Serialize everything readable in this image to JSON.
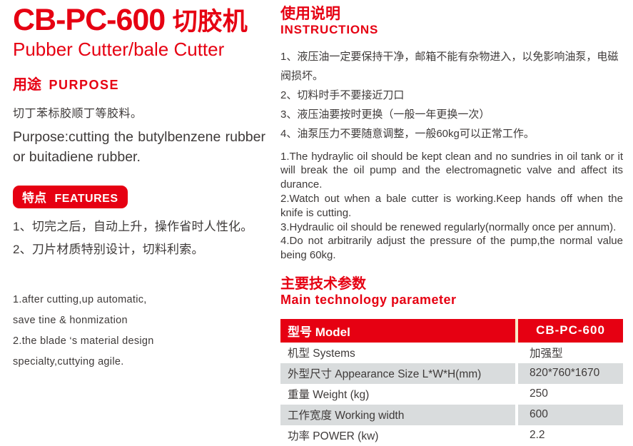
{
  "colors": {
    "accent_red": "#e60012",
    "text_dark": "#3e3a39",
    "row_gray": "#d9dcdd",
    "header_divider_cream": "#f7edc9"
  },
  "product": {
    "model": "CB-PC-600",
    "name_cn": "切胶机",
    "subtitle_en": "Pubber Cutter/bale Cutter"
  },
  "purpose": {
    "heading_cn": "用途",
    "heading_en": "PURPOSE",
    "text_cn": "切丁苯标胶顺丁等胶料。",
    "text_en": "Purpose:cutting the butylbenzene rubber or buitadiene rubber."
  },
  "features": {
    "badge_cn": "特点",
    "badge_en": "FEATURES",
    "items_cn": [
      "1、切完之后，自动上升，操作省时人性化。",
      "2、刀片材质特别设计，切料利索。"
    ],
    "lines_en": [
      "1.after cutting,up automatic,",
      "save tine & honmization",
      "2.the blade ‘s material design",
      "specialty,cuttying agile."
    ]
  },
  "instructions": {
    "heading_cn": "使用说明",
    "heading_en": "INSTRUCTIONS",
    "items_cn": [
      "1、液压油一定要保持干净，邮箱不能有杂物进入，以免影响油泵，电磁阀损坏。",
      "2、切料时手不要接近刀口",
      "3、液压油要按时更换（一般一年更换一次）",
      "4、油泵压力不要随意调整，一般60kg可以正常工作。"
    ],
    "items_en": [
      "1.The hydraylic oil should be kept clean and no sundries in oil tank or it will break the oil pump and the electromagnetic valve and affect its durance.",
      "2.Watch out when a bale cutter is working.Keep hands off when the knife is cutting.",
      "3.Hydraulic oil should be renewed regularly(normally once per annum).",
      "4.Do not arbitrarily adjust the pressure of the pump,the normal value being 60kg."
    ]
  },
  "parameters": {
    "heading_cn": "主要技术参数",
    "heading_en": "Main technology parameter",
    "table": {
      "header": {
        "label": "型号 Model",
        "value": "CB-PC-600"
      },
      "rows": [
        {
          "label": "机型 Systems",
          "value": "加强型"
        },
        {
          "label": "外型尺寸 Appearance Size L*W*H(mm)",
          "value": "820*760*1670"
        },
        {
          "label": "重量 Weight (kg)",
          "value": "250"
        },
        {
          "label": "工作宽度 Working width",
          "value": "600"
        },
        {
          "label": "功率 POWER (kw)",
          "value": "2.2"
        }
      ]
    }
  }
}
